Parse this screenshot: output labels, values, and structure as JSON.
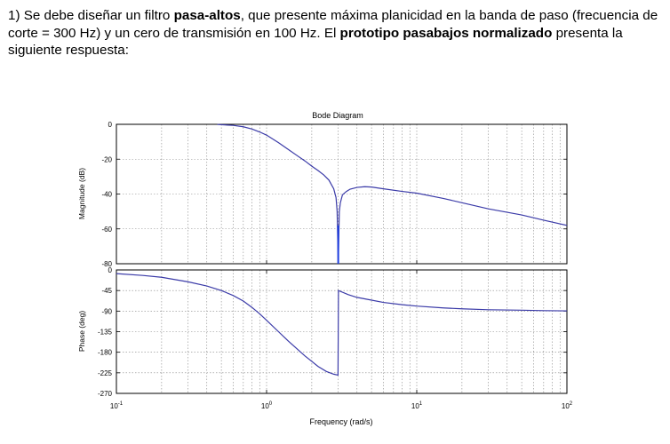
{
  "problem": {
    "t1": " 1) Se debe diseñar un filtro ",
    "b1": "pasa-altos",
    "t2": ", que presente máxima planicidad en la banda de paso (frecuencia de corte = 300 Hz) y un cero de transmisión en 100 Hz. El ",
    "b2": "prototipo pasabajos normalizado",
    "t3": " presenta la siguiente respuesta:"
  },
  "chart_data": {
    "type": "line",
    "title": "Bode Diagram",
    "xlabel": "Frequency (rad/s)",
    "xscale": "log",
    "xlim": [
      0.1,
      100
    ],
    "xticks": [
      {
        "base": "10",
        "exp": "-1",
        "value": 0.1
      },
      {
        "base": "10",
        "exp": "0",
        "value": 1
      },
      {
        "base": "10",
        "exp": "1",
        "value": 10
      },
      {
        "base": "10",
        "exp": "2",
        "value": 100
      }
    ],
    "grid": true,
    "line_color": "#3b3ba8",
    "notch_color": "#1f3fe0",
    "magnitude": {
      "ylabel": "Magnitude (dB)",
      "ylim": [
        -80,
        0
      ],
      "yticks": [
        0,
        -20,
        -40,
        -60,
        -80
      ],
      "x": [
        0.47,
        0.6,
        0.7,
        0.8,
        0.9,
        1.0,
        1.2,
        1.4,
        1.6,
        1.8,
        2.0,
        2.2,
        2.4,
        2.6,
        2.8,
        2.9,
        2.95,
        3.0,
        3.05,
        3.1,
        3.2,
        3.4,
        3.6,
        4.0,
        4.5,
        5.0,
        6.0,
        8.0,
        10,
        15,
        20,
        30,
        50,
        70,
        100
      ],
      "y": [
        -0.1,
        -0.6,
        -1.4,
        -2.7,
        -4.4,
        -6.2,
        -10.5,
        -14.5,
        -18,
        -21,
        -24,
        -26.5,
        -29,
        -32,
        -37,
        -42,
        -50,
        -80,
        -50,
        -45,
        -40.5,
        -38.5,
        -37.2,
        -36.2,
        -35.8,
        -36,
        -37,
        -38.5,
        -39.5,
        -42.5,
        -45,
        -48.5,
        -52,
        -55,
        -58
      ]
    },
    "phase": {
      "ylabel": "Phase (deg)",
      "ylim": [
        -270,
        0
      ],
      "yticks": [
        0,
        -45,
        -90,
        -135,
        -180,
        -225,
        -270
      ],
      "x": [
        0.1,
        0.15,
        0.2,
        0.3,
        0.4,
        0.5,
        0.6,
        0.7,
        0.8,
        0.9,
        1.0,
        1.2,
        1.4,
        1.6,
        1.8,
        2.0,
        2.2,
        2.5,
        2.8,
        2.99,
        3.0,
        3.01,
        3.5,
        4.0,
        5.0,
        6.0,
        8.0,
        10,
        15,
        20,
        30,
        50,
        70,
        100
      ],
      "y": [
        -8,
        -12,
        -16,
        -26,
        -35,
        -45,
        -56,
        -68,
        -82,
        -96,
        -110,
        -135,
        -156,
        -173,
        -188,
        -200,
        -211,
        -222,
        -228,
        -230,
        -140,
        -45,
        -54,
        -60,
        -66,
        -71,
        -76,
        -79,
        -83,
        -85,
        -87,
        -88,
        -89,
        -89.5
      ]
    }
  }
}
